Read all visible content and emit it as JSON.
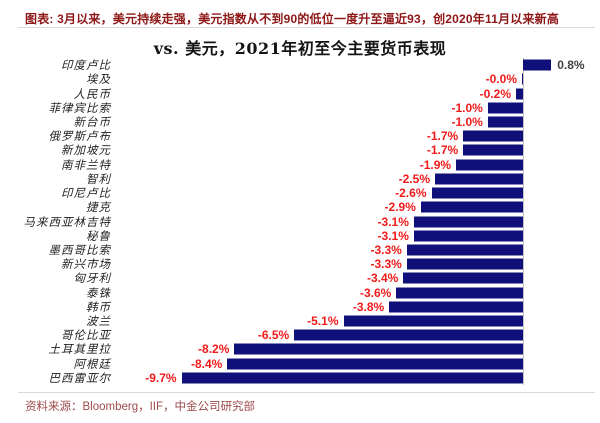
{
  "header": {
    "title": "图表: 3月以来，美元持续走强，美元指数从不到90的低位一度升至逼近93，创2020年11月以来新高"
  },
  "chart_data": {
    "type": "bar",
    "orientation": "horizontal",
    "title": "vs. 美元，2021年初至今主要货币表现",
    "categories": [
      "印度卢比",
      "埃及",
      "人民币",
      "菲律宾比索",
      "新台币",
      "俄罗斯卢布",
      "新加坡元",
      "南非兰特",
      "智利",
      "印尼卢比",
      "捷克",
      "马来西亚林吉特",
      "秘鲁",
      "墨西哥比索",
      "新兴市场",
      "匈牙利",
      "泰铢",
      "韩币",
      "波兰",
      "哥伦比亚",
      "土耳其里拉",
      "阿根廷",
      "巴西雷亚尔"
    ],
    "values": [
      0.8,
      -0.0,
      -0.2,
      -1.0,
      -1.0,
      -1.7,
      -1.7,
      -1.9,
      -2.5,
      -2.6,
      -2.9,
      -3.1,
      -3.1,
      -3.3,
      -3.3,
      -3.4,
      -3.6,
      -3.8,
      -5.1,
      -6.5,
      -8.2,
      -8.4,
      -9.7
    ],
    "value_labels": [
      "0.8%",
      "-0.0%",
      "-0.2%",
      "-1.0%",
      "-1.0%",
      "-1.7%",
      "-1.7%",
      "-1.9%",
      "-2.5%",
      "-2.6%",
      "-2.9%",
      "-3.1%",
      "-3.1%",
      "-3.3%",
      "-3.3%",
      "-3.4%",
      "-3.6%",
      "-3.8%",
      "-5.1%",
      "-6.5%",
      "-8.2%",
      "-8.4%",
      "-9.7%"
    ],
    "unit": "%",
    "xlabel": "",
    "ylabel": "",
    "xlim": [
      -10,
      1
    ],
    "grid": false,
    "legend": false,
    "colors": {
      "bar": "#10107a",
      "negative_label": "#f01a1a",
      "positive_label": "#3f3f3f",
      "header_title": "#8e1616",
      "source_text": "#9c4a4a",
      "axis_line": "#c4c4c4"
    }
  },
  "footer": {
    "source": "资料来源：Bloomberg，IIF，中金公司研究部"
  }
}
